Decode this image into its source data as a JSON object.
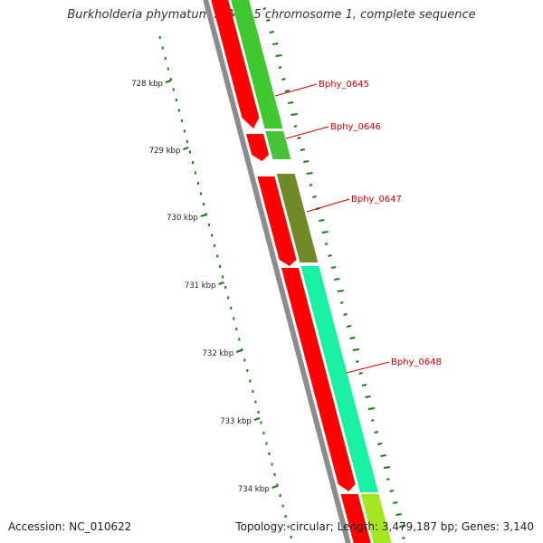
{
  "title": "Burkholderia phymatum STM815 chromosome 1, complete sequence",
  "footer": {
    "accession": "Accession: NC_010622",
    "summary": "Topology: circular; Length: 3,479,187 bp; Genes: 3,140"
  },
  "axis_ticks": [
    "728 kbp",
    "729 kbp",
    "730 kbp",
    "731 kbp",
    "732 kbp",
    "733 kbp",
    "734 kbp"
  ],
  "genes": [
    {
      "label": "Bphy_0645",
      "color": "#3fc92f"
    },
    {
      "label": "Bphy_0646",
      "color": "#46c336"
    },
    {
      "label": "Bphy_0647",
      "color": "#6f8a26"
    },
    {
      "label": "Bphy_0648",
      "color": "#19f0a2"
    }
  ],
  "colors": {
    "forward_orf": "#ff0000",
    "backbone": "#8c8c8c",
    "gc_skew": "#1c7a1c",
    "label_line": "#d40000",
    "next_gene": "#a3e621"
  }
}
